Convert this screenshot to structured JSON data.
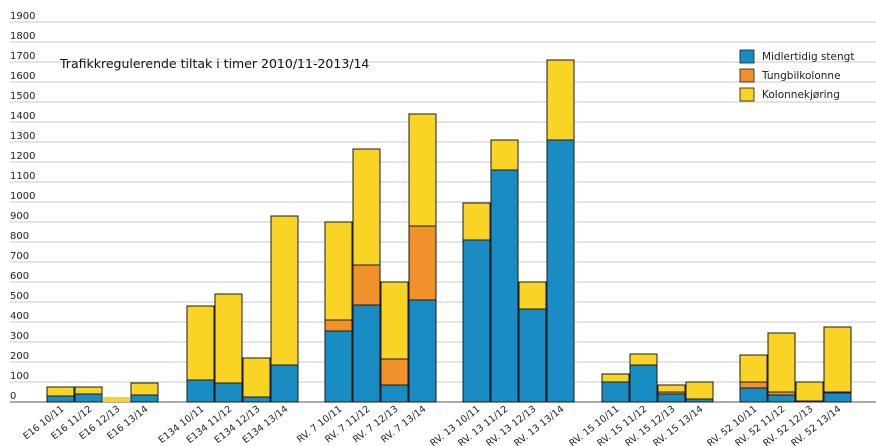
{
  "chart_data": {
    "type": "bar",
    "stacked": true,
    "title": "Trafikkregulerende tiltak i timer 2010/11-2013/14",
    "ylim": [
      0,
      1900
    ],
    "yticks": [
      0,
      100,
      200,
      300,
      400,
      500,
      600,
      700,
      800,
      900,
      1000,
      1100,
      1200,
      1300,
      1400,
      1500,
      1600,
      1700,
      1800,
      1900
    ],
    "grid": true,
    "legend_position": "top-right",
    "groups": [
      {
        "categories": [
          "E16 10/11",
          "E16 11/12",
          "E16 12/13",
          "E16 13/14"
        ]
      },
      {
        "categories": [
          "E134 10/11",
          "E134 11/12",
          "E134 12/13",
          "E134 13/14"
        ]
      },
      {
        "categories": [
          "RV. 7 10/11",
          "RV. 7 11/12",
          "RV. 7 12/13",
          "RV. 7 13/14"
        ]
      },
      {
        "categories": [
          "RV. 13 10/11",
          "RV. 13 11/12",
          "RV. 13 12/13",
          "RV. 13 13/14"
        ]
      },
      {
        "categories": [
          "RV. 15 10/11",
          "RV. 15 11/12",
          "RV. 15 12/13",
          "RV. 15 13/14"
        ]
      },
      {
        "categories": [
          "RV. 52 10/11",
          "RV. 52 11/12",
          "RV. 52 12/13",
          "RV. 52 13/14"
        ]
      }
    ],
    "series": [
      {
        "name": "Midlertidig stengt",
        "color": "#1a8cc4",
        "values": [
          30,
          40,
          0,
          35,
          110,
          95,
          25,
          185,
          355,
          485,
          85,
          510,
          810,
          1160,
          465,
          1310,
          100,
          185,
          40,
          15,
          70,
          35,
          5,
          45
        ]
      },
      {
        "name": "Tungbilkolonne",
        "color": "#f0912a",
        "values": [
          0,
          0,
          0,
          0,
          0,
          0,
          0,
          0,
          55,
          200,
          130,
          370,
          0,
          0,
          0,
          0,
          0,
          0,
          10,
          0,
          30,
          15,
          0,
          5
        ]
      },
      {
        "name": "Kolonnekjøring",
        "color": "#fad424",
        "values": [
          45,
          35,
          25,
          60,
          370,
          445,
          195,
          745,
          490,
          580,
          385,
          560,
          185,
          150,
          135,
          400,
          40,
          55,
          35,
          85,
          135,
          295,
          95,
          325
        ]
      }
    ]
  }
}
